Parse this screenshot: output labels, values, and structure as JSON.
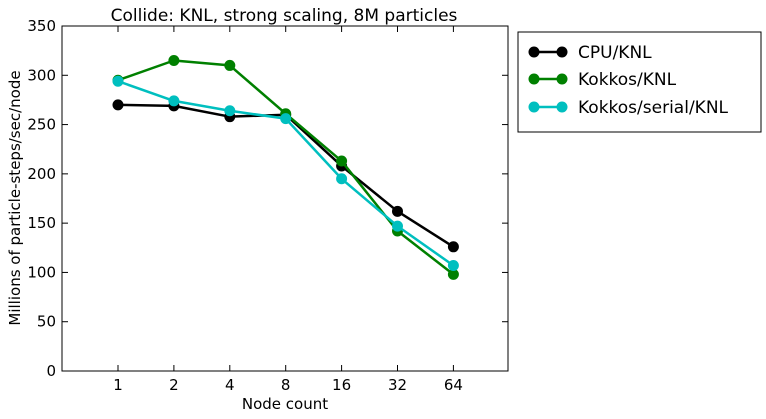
{
  "chart_data": {
    "type": "line",
    "title": "Collide: KNL, strong scaling, 8M particles",
    "xlabel": "Node count",
    "ylabel": "Millions of particle-steps/sec/node",
    "categories": [
      "1",
      "2",
      "4",
      "8",
      "16",
      "32",
      "64"
    ],
    "ylim": [
      0,
      350
    ],
    "yticks": [
      0,
      50,
      100,
      150,
      200,
      250,
      300,
      350
    ],
    "grid": false,
    "legend_position": "outside-right",
    "series": [
      {
        "name": "CPU/KNL",
        "color": "#000000",
        "values": [
          270,
          269,
          258,
          260,
          208,
          162,
          126
        ]
      },
      {
        "name": "Kokkos/KNL",
        "color": "#008000",
        "values": [
          295,
          315,
          310,
          261,
          213,
          142,
          98
        ]
      },
      {
        "name": "Kokkos/serial/KNL",
        "color": "#00bfbf",
        "values": [
          294,
          274,
          264,
          256,
          195,
          147,
          107
        ]
      }
    ]
  }
}
